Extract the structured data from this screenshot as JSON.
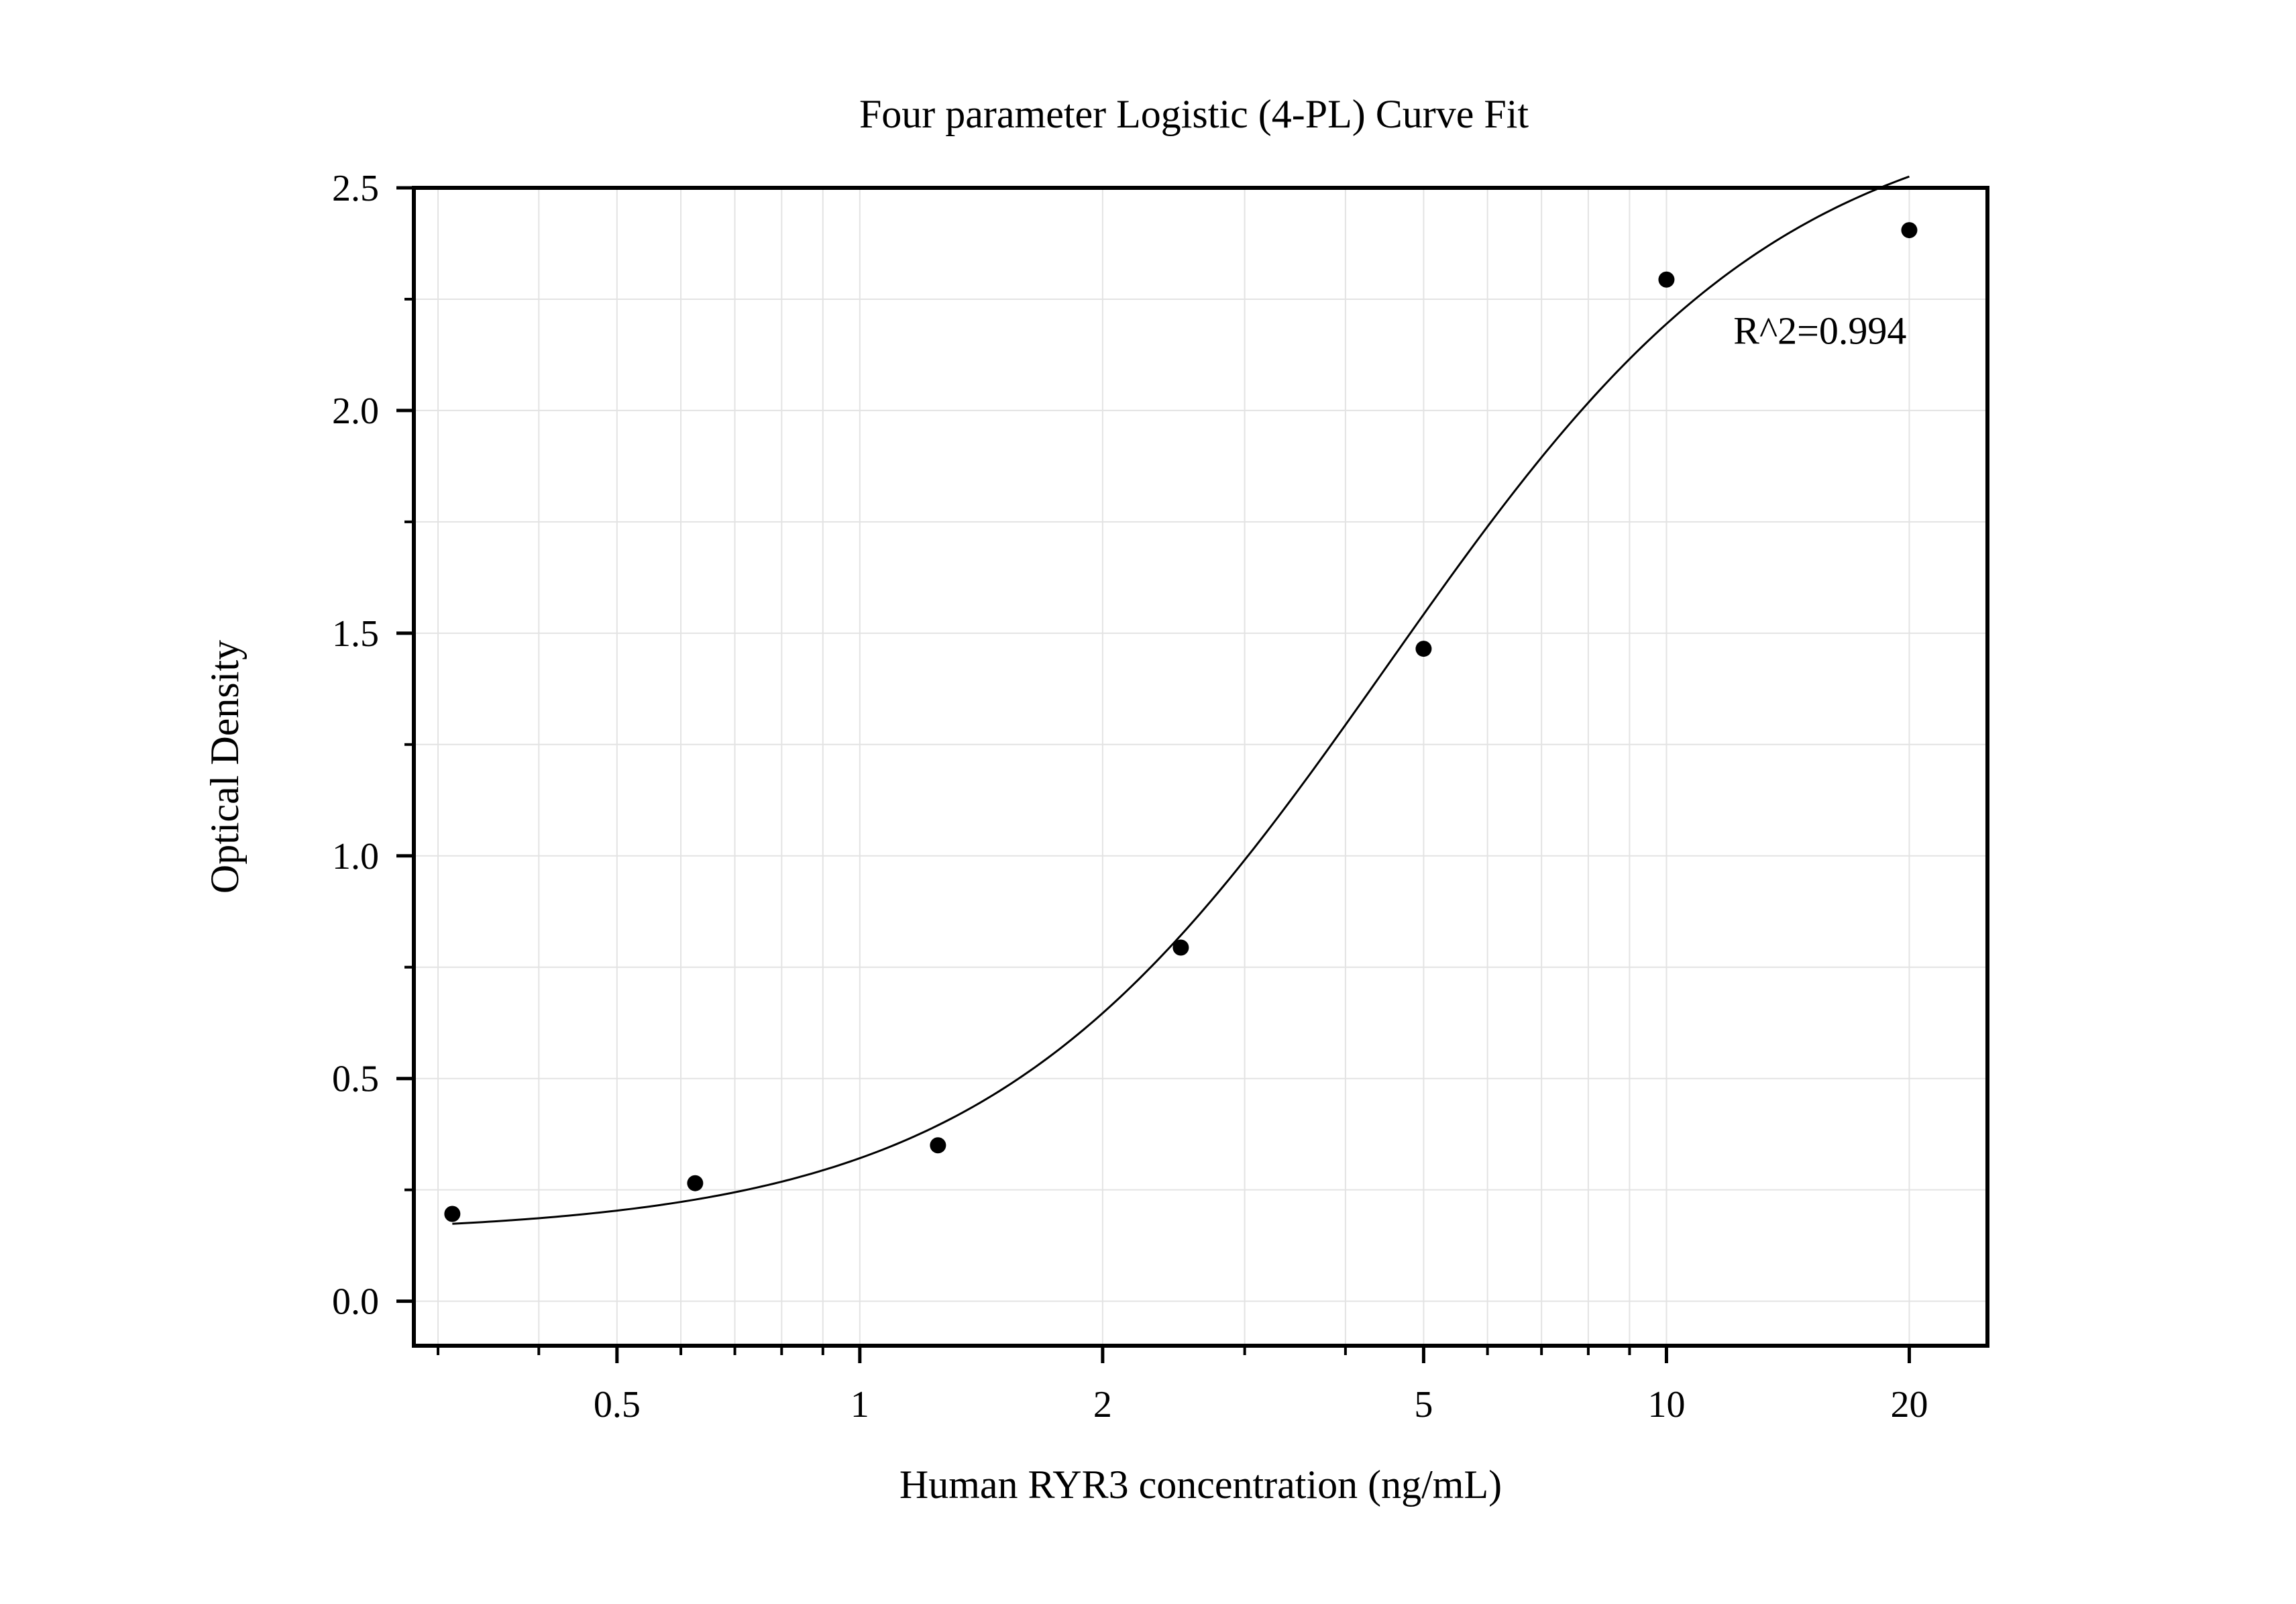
{
  "chart_data": {
    "type": "scatter",
    "title": "Four parameter Logistic (4-PL) Curve Fit",
    "xlabel": "Human RYR3 concentration (ng/mL)",
    "ylabel": "Optical Density",
    "xscale": "log",
    "xlim": [
      0.28,
      25
    ],
    "ylim": [
      -0.1,
      2.5
    ],
    "x_ticks": [
      {
        "value": 0.5,
        "label": "0.5"
      },
      {
        "value": 1,
        "label": "1"
      },
      {
        "value": 2,
        "label": "2"
      },
      {
        "value": 5,
        "label": "5"
      },
      {
        "value": 10,
        "label": "10"
      },
      {
        "value": 20,
        "label": "20"
      }
    ],
    "y_ticks": [
      {
        "value": 0.0,
        "label": "0.0"
      },
      {
        "value": 0.5,
        "label": "0.5"
      },
      {
        "value": 1.0,
        "label": "1.0"
      },
      {
        "value": 1.5,
        "label": "1.5"
      },
      {
        "value": 2.0,
        "label": "2.0"
      },
      {
        "value": 2.5,
        "label": "2.5"
      }
    ],
    "grid": true,
    "series": [
      {
        "points": [
          {
            "x": 0.3125,
            "y": 0.196
          },
          {
            "x": 0.625,
            "y": 0.265
          },
          {
            "x": 1.25,
            "y": 0.35
          },
          {
            "x": 2.5,
            "y": 0.794
          },
          {
            "x": 5,
            "y": 1.465
          },
          {
            "x": 10,
            "y": 2.294
          },
          {
            "x": 20,
            "y": 2.405
          }
        ],
        "color": "#000000"
      }
    ],
    "fit_curve": {
      "model": "4PL",
      "bottom": 0.15,
      "top": 2.7,
      "ec50": 4.5,
      "hill": 1.75,
      "x_range": [
        0.3125,
        20
      ],
      "color": "#000000"
    },
    "annotation": {
      "text": "R^2=0.994",
      "x": 15.5,
      "y": 2.15
    }
  }
}
